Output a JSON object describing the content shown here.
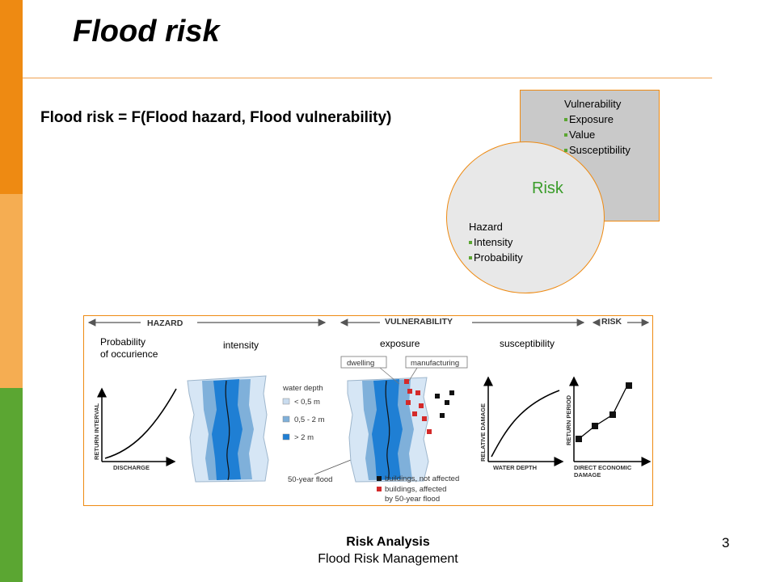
{
  "slide": {
    "title": "Flood risk",
    "formula": "Flood risk = F(Flood hazard, Flood vulnerability)",
    "page_number": "3"
  },
  "venn": {
    "vulnerability_heading": "Vulnerability",
    "vulnerability_items": [
      "Exposure",
      "Value",
      "Susceptibility"
    ],
    "hazard_heading": "Hazard",
    "hazard_items": [
      "Intensity",
      "Probability"
    ],
    "overlap_label": "Risk"
  },
  "figure": {
    "sections": [
      "HAZARD",
      "VULNERABILITY",
      "RISK"
    ],
    "columns": [
      "Probability",
      "of occurience",
      "intensity",
      "exposure",
      "susceptibility"
    ],
    "tags": [
      "dwelling",
      "manufacturing"
    ],
    "legend_title": "water depth",
    "legend_items": [
      "< 0,5 m",
      "0,5 - 2 m",
      "> 2 m"
    ],
    "flood_label": "50-year flood",
    "building_legend": [
      "buildings, not affected",
      "buildings, affected",
      "by 50-year flood"
    ],
    "axes": {
      "ret_interval": "RETURN INTERVAL",
      "discharge": "DISCHARGE",
      "rel_damage": "RELATIVE DAMAGE",
      "water_depth": "WATER DEPTH",
      "return_period": "RETURN PERIOD",
      "direct_damage_1": "DIRECT ECONOMIC",
      "direct_damage_2": "DAMAGE"
    },
    "colors": {
      "shallow": "#c9dcef",
      "medium": "#7fb0da",
      "deep": "#1f7fd4",
      "affected": "#d42a2a"
    }
  },
  "footer": {
    "line1": "Risk Analysis",
    "line2": "Flood Risk Management"
  }
}
